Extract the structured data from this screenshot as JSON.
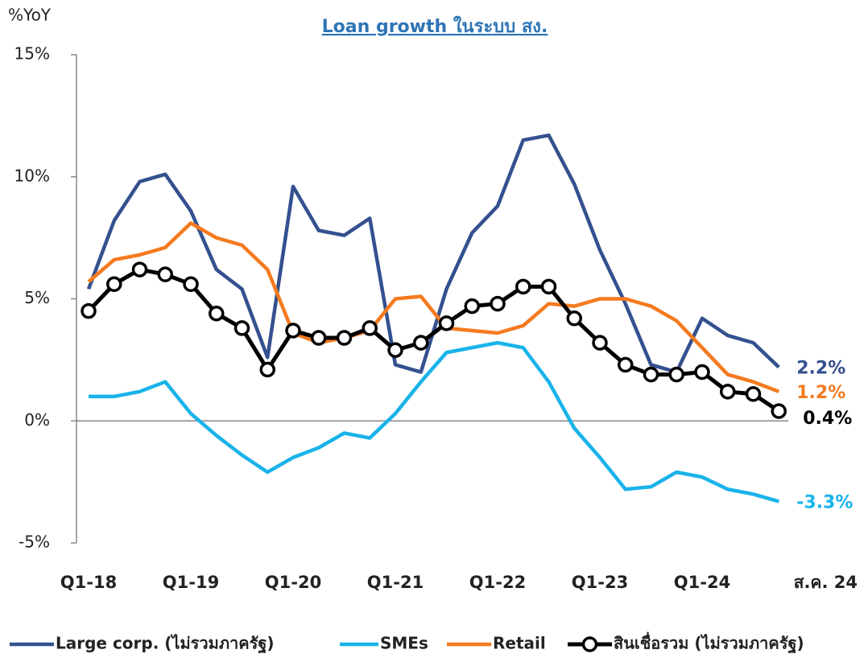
{
  "chart_data": {
    "type": "line",
    "title": "Loan growth ในระบบ สง.",
    "ylabel": "%YoY",
    "categories": [
      "Q1-18",
      null,
      null,
      null,
      "Q1-19",
      null,
      null,
      null,
      "Q1-20",
      null,
      null,
      null,
      "Q1-21",
      null,
      null,
      null,
      "Q1-22",
      null,
      null,
      null,
      "Q1-23",
      null,
      null,
      null,
      "Q1-24",
      null,
      null,
      "ส.ค. 24"
    ],
    "ylim": [
      -5,
      15
    ],
    "yticks": [
      {
        "value": -5,
        "label": "-5%"
      },
      {
        "value": 0,
        "label": "0%"
      },
      {
        "value": 5,
        "label": "5%"
      },
      {
        "value": 10,
        "label": "10%"
      },
      {
        "value": 15,
        "label": "15%"
      }
    ],
    "series": [
      {
        "name": "Large corp. (ไม่รวมภาครัฐ)",
        "color": "#34508f",
        "values": [
          5.4,
          8.2,
          9.8,
          10.1,
          8.6,
          6.2,
          5.4,
          2.6,
          9.6,
          7.8,
          7.6,
          8.3,
          2.3,
          2.0,
          5.4,
          7.7,
          8.8,
          11.5,
          11.7,
          9.7,
          7.0,
          4.8,
          2.3,
          2.0,
          4.2,
          3.5,
          3.2,
          2.2
        ],
        "value_labels": [
          null,
          null,
          null,
          null,
          null,
          null,
          null,
          null,
          null,
          null,
          null,
          null,
          null,
          null,
          null,
          null,
          null,
          null,
          null,
          null,
          null,
          null,
          null,
          null,
          null,
          null,
          null,
          "2.2%"
        ]
      },
      {
        "name": "SMEs",
        "color": "#19b3ea",
        "values": [
          1.0,
          1.0,
          1.2,
          1.6,
          0.3,
          -0.6,
          -1.4,
          -2.1,
          -1.5,
          -1.1,
          -0.5,
          -0.7,
          0.3,
          1.6,
          2.8,
          3.0,
          3.2,
          3.0,
          1.6,
          -0.3,
          -1.5,
          -2.8,
          -2.7,
          -2.1,
          -2.3,
          -2.8,
          -3.0,
          -3.3
        ],
        "value_labels": [
          null,
          null,
          null,
          null,
          null,
          null,
          null,
          null,
          null,
          null,
          null,
          null,
          null,
          null,
          null,
          null,
          null,
          null,
          null,
          null,
          null,
          null,
          null,
          null,
          null,
          null,
          null,
          "-3.3%"
        ]
      },
      {
        "name": "Retail",
        "color": "#f57a1f",
        "values": [
          5.7,
          6.6,
          6.8,
          7.1,
          8.1,
          7.5,
          7.2,
          6.2,
          3.6,
          3.2,
          3.4,
          3.7,
          5.0,
          5.1,
          3.8,
          3.7,
          3.6,
          3.9,
          4.8,
          4.7,
          5.0,
          5.0,
          4.7,
          4.1,
          3.0,
          1.9,
          1.6,
          1.2
        ],
        "value_labels": [
          null,
          null,
          null,
          null,
          null,
          null,
          null,
          null,
          null,
          null,
          null,
          null,
          null,
          null,
          null,
          null,
          null,
          null,
          null,
          null,
          null,
          null,
          null,
          null,
          null,
          null,
          null,
          "1.2%"
        ]
      },
      {
        "name": "สินเชื่อรวม (ไม่รวมภาครัฐ)",
        "color": "#000000",
        "markers": true,
        "values": [
          4.5,
          5.6,
          6.2,
          6.0,
          5.6,
          4.4,
          3.8,
          2.1,
          3.7,
          3.4,
          3.4,
          3.8,
          2.9,
          3.2,
          4.0,
          4.7,
          4.8,
          5.5,
          5.5,
          4.2,
          3.2,
          2.3,
          1.9,
          1.9,
          2.0,
          1.2,
          1.1,
          0.4
        ],
        "value_labels": [
          null,
          null,
          null,
          null,
          null,
          null,
          null,
          null,
          null,
          null,
          null,
          null,
          null,
          null,
          null,
          null,
          null,
          null,
          null,
          null,
          null,
          null,
          null,
          null,
          null,
          null,
          null,
          "0.4%"
        ]
      }
    ]
  }
}
